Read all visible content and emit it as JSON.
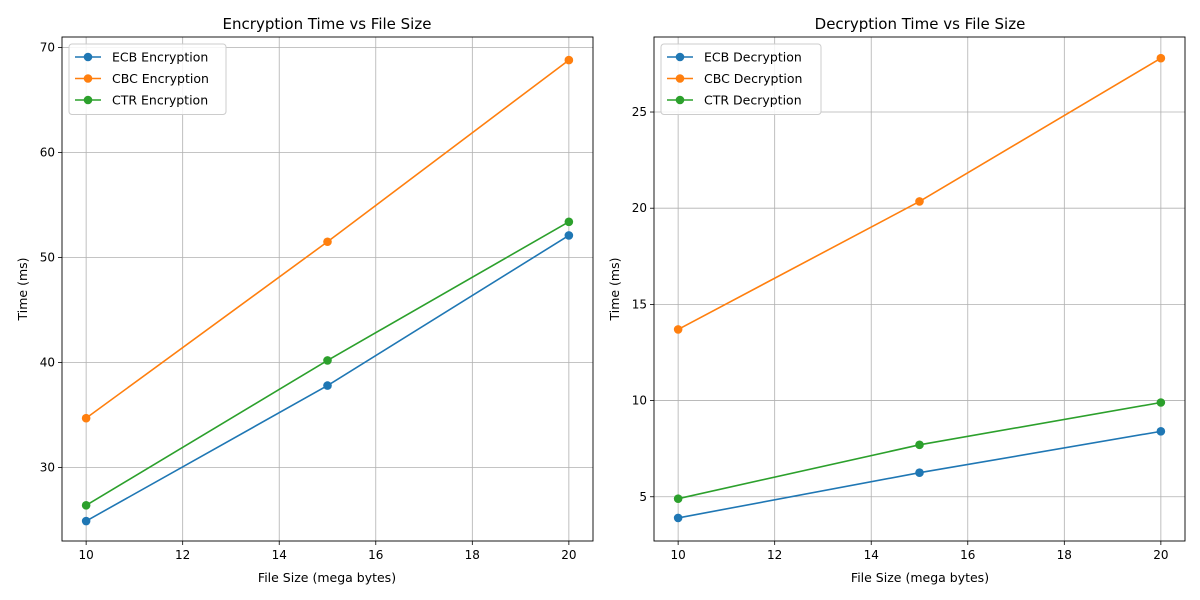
{
  "chart_data": [
    {
      "type": "line",
      "title": "Encryption Time vs File Size",
      "xlabel": "File Size (mega bytes)",
      "ylabel": "Time (ms)",
      "x": [
        10,
        15,
        20
      ],
      "xlim": [
        9.5,
        20.5
      ],
      "ylim": [
        23.0,
        71.0
      ],
      "xticks": [
        10,
        12,
        14,
        16,
        18,
        20
      ],
      "yticks": [
        30,
        40,
        50,
        60,
        70
      ],
      "grid": true,
      "legend_position": "upper-left",
      "series": [
        {
          "name": "ECB Encryption",
          "color": "#1f77b4",
          "values": [
            24.9,
            37.8,
            52.1
          ]
        },
        {
          "name": "CBC Encryption",
          "color": "#ff7f0e",
          "values": [
            34.7,
            51.5,
            68.8
          ]
        },
        {
          "name": "CTR Encryption",
          "color": "#2ca02c",
          "values": [
            26.4,
            40.2,
            53.4
          ]
        }
      ]
    },
    {
      "type": "line",
      "title": "Decryption Time vs File Size",
      "xlabel": "File Size (mega bytes)",
      "ylabel": "Time (ms)",
      "x": [
        10,
        15,
        20
      ],
      "xlim": [
        9.5,
        20.5
      ],
      "ylim": [
        2.7,
        28.9
      ],
      "xticks": [
        10,
        12,
        14,
        16,
        18,
        20
      ],
      "yticks": [
        5,
        10,
        15,
        20,
        25
      ],
      "grid": true,
      "legend_position": "upper-left",
      "series": [
        {
          "name": "ECB Decryption",
          "color": "#1f77b4",
          "values": [
            3.9,
            6.25,
            8.4
          ]
        },
        {
          "name": "CBC Decryption",
          "color": "#ff7f0e",
          "values": [
            13.7,
            20.35,
            27.8
          ]
        },
        {
          "name": "CTR Decryption",
          "color": "#2ca02c",
          "values": [
            4.9,
            7.7,
            9.9
          ]
        }
      ]
    }
  ]
}
